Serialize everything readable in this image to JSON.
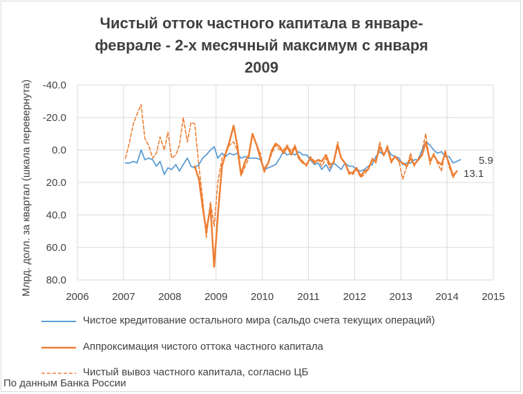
{
  "chart_data": {
    "type": "line",
    "title_lines": [
      "Чистый отток частного капитала в январе-",
      "феврале - 2-х месячный максимум с января",
      "2009"
    ],
    "ylabel": "Млрд. долл. за квартал (шкала перевернута)",
    "xlim": [
      2006,
      2015
    ],
    "x_ticks": [
      "2006",
      "2007",
      "2008",
      "2009",
      "2010",
      "2011",
      "2012",
      "2013",
      "2014",
      "2015"
    ],
    "ylim": [
      -40,
      80
    ],
    "y_reversed": true,
    "y_ticks": [
      "-40.0",
      "-20.0",
      "0.0",
      "20.0",
      "40.0",
      "60.0",
      "80.0"
    ],
    "grid": true,
    "legend_position": "bottom",
    "series": [
      {
        "name": "Чистое кредитование остального мира (сальдо счета текущих операций)",
        "color": "#5b9bd5",
        "dash": "solid",
        "points": [
          [
            2007.04,
            8
          ],
          [
            2007.13,
            8
          ],
          [
            2007.21,
            7
          ],
          [
            2007.29,
            8
          ],
          [
            2007.38,
            0
          ],
          [
            2007.46,
            6
          ],
          [
            2007.54,
            5
          ],
          [
            2007.63,
            6
          ],
          [
            2007.71,
            10
          ],
          [
            2007.79,
            7
          ],
          [
            2007.88,
            15
          ],
          [
            2007.96,
            11
          ],
          [
            2008.04,
            12
          ],
          [
            2008.13,
            9
          ],
          [
            2008.21,
            13
          ],
          [
            2008.29,
            9
          ],
          [
            2008.38,
            5
          ],
          [
            2008.46,
            10
          ],
          [
            2008.54,
            11
          ],
          [
            2008.63,
            9
          ],
          [
            2008.71,
            5
          ],
          [
            2008.79,
            3
          ],
          [
            2008.88,
            0
          ],
          [
            2008.96,
            -2
          ],
          [
            2009.04,
            5
          ],
          [
            2009.13,
            2
          ],
          [
            2009.21,
            4
          ],
          [
            2009.29,
            2
          ],
          [
            2009.38,
            3
          ],
          [
            2009.46,
            2
          ],
          [
            2009.54,
            5
          ],
          [
            2009.63,
            4
          ],
          [
            2009.71,
            5
          ],
          [
            2009.79,
            5
          ],
          [
            2009.88,
            5
          ],
          [
            2009.96,
            6
          ],
          [
            2010.04,
            12
          ],
          [
            2010.13,
            11
          ],
          [
            2010.21,
            10
          ],
          [
            2010.29,
            9
          ],
          [
            2010.38,
            5
          ],
          [
            2010.46,
            1
          ],
          [
            2010.54,
            3
          ],
          [
            2010.63,
            2
          ],
          [
            2010.71,
            3
          ],
          [
            2010.79,
            1
          ],
          [
            2010.88,
            3
          ],
          [
            2010.96,
            3
          ],
          [
            2011.04,
            6
          ],
          [
            2011.13,
            9
          ],
          [
            2011.21,
            8
          ],
          [
            2011.29,
            12
          ],
          [
            2011.38,
            9
          ],
          [
            2011.46,
            13
          ],
          [
            2011.54,
            8
          ],
          [
            2011.63,
            10
          ],
          [
            2011.71,
            12
          ],
          [
            2011.79,
            8
          ],
          [
            2011.88,
            10
          ],
          [
            2011.96,
            10
          ],
          [
            2012.04,
            12
          ],
          [
            2012.13,
            13
          ],
          [
            2012.21,
            12
          ],
          [
            2012.29,
            10
          ],
          [
            2012.38,
            9
          ],
          [
            2012.46,
            4
          ],
          [
            2012.54,
            1
          ],
          [
            2012.63,
            3
          ],
          [
            2012.71,
            -1
          ],
          [
            2012.79,
            3
          ],
          [
            2012.88,
            4
          ],
          [
            2012.96,
            5
          ],
          [
            2013.04,
            9
          ],
          [
            2013.13,
            8
          ],
          [
            2013.21,
            8
          ],
          [
            2013.29,
            6
          ],
          [
            2013.38,
            6
          ],
          [
            2013.46,
            0
          ],
          [
            2013.54,
            -5
          ],
          [
            2013.63,
            -3
          ],
          [
            2013.71,
            0
          ],
          [
            2013.79,
            2
          ],
          [
            2013.88,
            1
          ],
          [
            2013.96,
            4
          ],
          [
            2014.04,
            4
          ],
          [
            2014.13,
            8
          ],
          [
            2014.21,
            7
          ],
          [
            2014.29,
            6
          ]
        ]
      },
      {
        "name": "Аппроксимация чистого оттока частного капитала",
        "color": "#ed7d31",
        "dash": "solid",
        "points": [
          [
            2008.54,
            10
          ],
          [
            2008.63,
            18
          ],
          [
            2008.71,
            35
          ],
          [
            2008.79,
            50
          ],
          [
            2008.88,
            35
          ],
          [
            2008.96,
            72
          ],
          [
            2009.04,
            40
          ],
          [
            2009.13,
            10
          ],
          [
            2009.21,
            2
          ],
          [
            2009.29,
            -5
          ],
          [
            2009.38,
            -15
          ],
          [
            2009.46,
            -3
          ],
          [
            2009.54,
            15
          ],
          [
            2009.63,
            7
          ],
          [
            2009.71,
            3
          ],
          [
            2009.79,
            -10
          ],
          [
            2009.88,
            -3
          ],
          [
            2009.96,
            5
          ],
          [
            2010.04,
            12
          ],
          [
            2010.13,
            8
          ],
          [
            2010.21,
            0
          ],
          [
            2010.29,
            -4
          ],
          [
            2010.38,
            -2
          ],
          [
            2010.46,
            2
          ],
          [
            2010.54,
            -2
          ],
          [
            2010.63,
            3
          ],
          [
            2010.71,
            -2
          ],
          [
            2010.79,
            5
          ],
          [
            2010.88,
            8
          ],
          [
            2010.96,
            9
          ],
          [
            2011.04,
            5
          ],
          [
            2011.13,
            8
          ],
          [
            2011.21,
            6
          ],
          [
            2011.29,
            7
          ],
          [
            2011.38,
            3
          ],
          [
            2011.46,
            9
          ],
          [
            2011.54,
            8
          ],
          [
            2011.63,
            -3
          ],
          [
            2011.71,
            5
          ],
          [
            2011.79,
            8
          ],
          [
            2011.88,
            14
          ],
          [
            2011.96,
            14
          ],
          [
            2012.04,
            11
          ],
          [
            2012.13,
            16
          ],
          [
            2012.21,
            13
          ],
          [
            2012.29,
            12
          ],
          [
            2012.38,
            6
          ],
          [
            2012.46,
            7
          ],
          [
            2012.54,
            -2
          ],
          [
            2012.63,
            3
          ],
          [
            2012.71,
            -1
          ],
          [
            2012.79,
            7
          ],
          [
            2012.88,
            4
          ],
          [
            2012.96,
            7
          ],
          [
            2013.04,
            8
          ],
          [
            2013.13,
            10
          ],
          [
            2013.21,
            5
          ],
          [
            2013.29,
            9
          ],
          [
            2013.38,
            6
          ],
          [
            2013.46,
            3
          ],
          [
            2013.54,
            -5
          ],
          [
            2013.63,
            7
          ],
          [
            2013.71,
            3
          ],
          [
            2013.79,
            7
          ],
          [
            2013.88,
            9
          ],
          [
            2013.96,
            2
          ],
          [
            2014.04,
            8
          ],
          [
            2014.13,
            16
          ],
          [
            2014.21,
            13
          ]
        ]
      },
      {
        "name": "Чистый вывоз частного капитала, согласно ЦБ",
        "color": "#ed7d31",
        "dash": "dashed",
        "points": [
          [
            2007.04,
            5
          ],
          [
            2007.13,
            -5
          ],
          [
            2007.21,
            -16
          ],
          [
            2007.29,
            -22
          ],
          [
            2007.38,
            -28
          ],
          [
            2007.46,
            -7
          ],
          [
            2007.54,
            -3
          ],
          [
            2007.63,
            5
          ],
          [
            2007.71,
            2
          ],
          [
            2007.79,
            -8
          ],
          [
            2007.88,
            0
          ],
          [
            2007.96,
            -11
          ],
          [
            2008.04,
            5
          ],
          [
            2008.13,
            3
          ],
          [
            2008.21,
            -3
          ],
          [
            2008.29,
            -20
          ],
          [
            2008.38,
            -5
          ],
          [
            2008.46,
            -17
          ],
          [
            2008.54,
            -16
          ],
          [
            2008.63,
            10
          ],
          [
            2008.71,
            30
          ],
          [
            2008.79,
            54
          ],
          [
            2008.88,
            32
          ],
          [
            2008.96,
            47
          ],
          [
            2009.04,
            20
          ],
          [
            2009.13,
            5
          ],
          [
            2009.21,
            2
          ],
          [
            2009.29,
            -3
          ],
          [
            2009.38,
            -5
          ],
          [
            2009.46,
            0
          ],
          [
            2009.54,
            16
          ],
          [
            2009.63,
            10
          ],
          [
            2009.71,
            5
          ],
          [
            2009.79,
            -10
          ],
          [
            2009.88,
            -3
          ],
          [
            2009.96,
            2
          ],
          [
            2010.04,
            14
          ],
          [
            2010.13,
            8
          ],
          [
            2010.21,
            2
          ],
          [
            2010.29,
            -3
          ],
          [
            2010.38,
            0
          ],
          [
            2010.46,
            0
          ],
          [
            2010.54,
            -3
          ],
          [
            2010.63,
            1
          ],
          [
            2010.71,
            -3
          ],
          [
            2010.79,
            4
          ],
          [
            2010.88,
            7
          ],
          [
            2010.96,
            10
          ],
          [
            2011.04,
            4
          ],
          [
            2011.13,
            7
          ],
          [
            2011.21,
            6
          ],
          [
            2011.29,
            10
          ],
          [
            2011.38,
            5
          ],
          [
            2011.46,
            11
          ],
          [
            2011.54,
            8
          ],
          [
            2011.63,
            -5
          ],
          [
            2011.71,
            5
          ],
          [
            2011.79,
            8
          ],
          [
            2011.88,
            15
          ],
          [
            2011.96,
            15
          ],
          [
            2012.04,
            12
          ],
          [
            2012.13,
            17
          ],
          [
            2012.21,
            15
          ],
          [
            2012.29,
            12
          ],
          [
            2012.38,
            5
          ],
          [
            2012.46,
            8
          ],
          [
            2012.54,
            -5
          ],
          [
            2012.63,
            4
          ],
          [
            2012.71,
            -3
          ],
          [
            2012.79,
            8
          ],
          [
            2012.88,
            4
          ],
          [
            2012.96,
            7
          ],
          [
            2013.04,
            18
          ],
          [
            2013.13,
            10
          ],
          [
            2013.21,
            2
          ],
          [
            2013.29,
            10
          ],
          [
            2013.38,
            5
          ],
          [
            2013.46,
            0
          ],
          [
            2013.54,
            -10
          ],
          [
            2013.63,
            9
          ],
          [
            2013.71,
            2
          ],
          [
            2013.79,
            8
          ],
          [
            2013.88,
            13
          ],
          [
            2013.96,
            0
          ],
          [
            2014.04,
            10
          ],
          [
            2014.13,
            17
          ],
          [
            2014.21,
            13
          ]
        ]
      }
    ],
    "annotations": [
      "5.9",
      "13.1"
    ]
  },
  "source_note": "По данным Банка России"
}
